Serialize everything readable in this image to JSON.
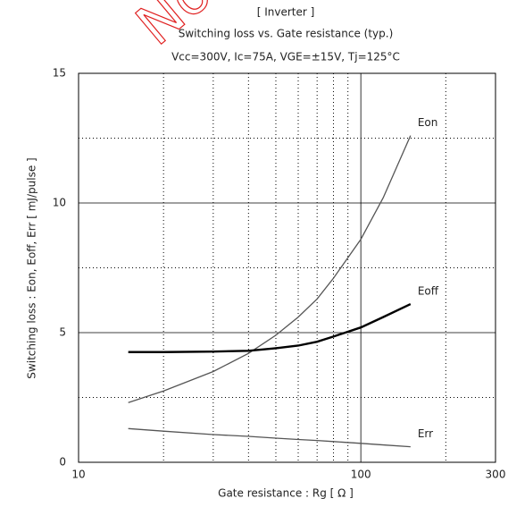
{
  "chart_data": {
    "type": "line",
    "watermark": "Not",
    "title": "[ Inverter ]",
    "subtitle": "Switching loss vs. Gate resistance (typ.)",
    "conditions": "Vcc=300V, Ic=75A, VGE=±15V, Tj=125°C",
    "x_label": "Gate resistance : Rg [ Ω ]",
    "y_label": "Switching loss : Eon, Eoff, Err [ mJ/pulse ]",
    "x_scale": "log",
    "x": [
      15,
      20,
      30,
      40,
      50,
      60,
      70,
      80,
      100,
      120,
      150
    ],
    "series": [
      {
        "name": "Eon",
        "color": "#555555",
        "values": [
          2.3,
          2.75,
          3.5,
          4.2,
          4.9,
          5.6,
          6.3,
          7.1,
          8.6,
          10.2,
          12.6
        ]
      },
      {
        "name": "Eoff",
        "color": "#000000",
        "values": [
          4.25,
          4.25,
          4.27,
          4.3,
          4.4,
          4.5,
          4.65,
          4.85,
          5.2,
          5.6,
          6.1
        ]
      },
      {
        "name": "Err",
        "color": "#555555",
        "values": [
          1.3,
          1.2,
          1.07,
          1.0,
          0.93,
          0.88,
          0.84,
          0.8,
          0.73,
          0.67,
          0.6
        ]
      }
    ],
    "xlim": [
      10,
      300
    ],
    "xticks": [
      10,
      100,
      300
    ],
    "x_minor_grid": [
      20,
      30,
      40,
      50,
      60,
      70,
      80,
      90,
      200
    ],
    "ylim": [
      0,
      15
    ],
    "yticks": [
      0,
      5,
      10,
      15
    ],
    "y_minor_grid": [
      2.5,
      7.5,
      12.5
    ],
    "grid": true
  }
}
